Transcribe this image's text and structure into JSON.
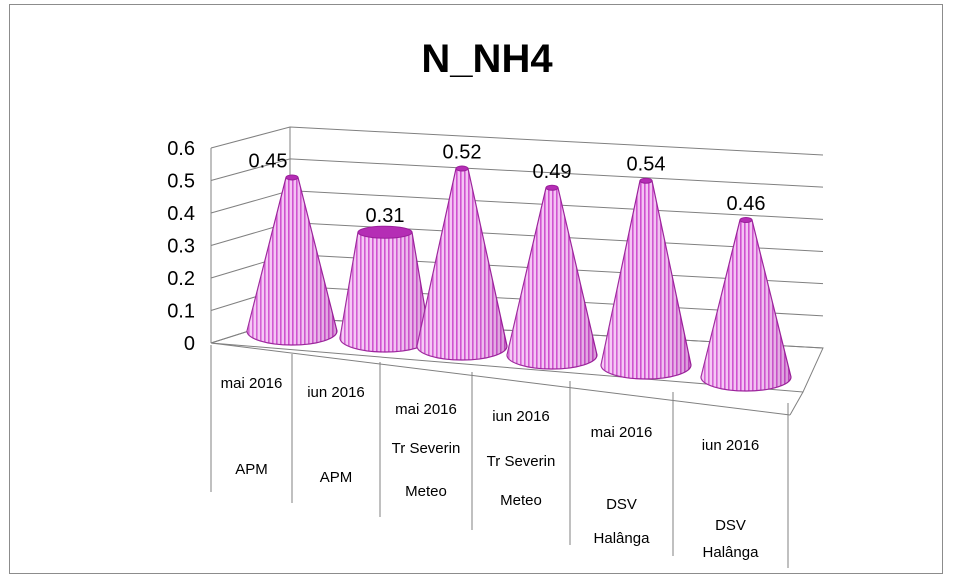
{
  "chart_data": {
    "type": "bar",
    "style": "3d-cone",
    "title": "N_NH4",
    "xlabel": "",
    "ylabel": "",
    "ylim": [
      0,
      0.6
    ],
    "yticks": [
      "0",
      "0.1",
      "0.2",
      "0.3",
      "0.4",
      "0.5",
      "0.6"
    ],
    "grid": true,
    "legend": "none",
    "categories": [
      {
        "period": "mai 2016",
        "station": [
          "APM"
        ]
      },
      {
        "period": "iun 2016",
        "station": [
          "APM"
        ]
      },
      {
        "period": "mai 2016",
        "station": [
          "Tr Severin",
          "Meteo"
        ]
      },
      {
        "period": "iun 2016",
        "station": [
          "Tr Severin",
          "Meteo"
        ]
      },
      {
        "period": "mai 2016",
        "station": [
          "DSV",
          "Halânga"
        ]
      },
      {
        "period": "iun 2016",
        "station": [
          "DSV",
          "Halânga"
        ]
      }
    ],
    "values": [
      0.45,
      0.31,
      0.52,
      0.49,
      0.54,
      0.46
    ],
    "data_labels": [
      "0.45",
      "0.31",
      "0.52",
      "0.49",
      "0.54",
      "0.46"
    ],
    "colors": {
      "cone_light": "#f6c8f6",
      "cone_stripe": "#cc44cc",
      "cone_outline": "#9a1f9a",
      "grid": "#808080"
    }
  }
}
